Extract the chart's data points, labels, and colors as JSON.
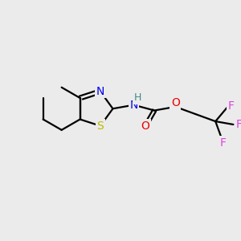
{
  "background_color": "#ebebeb",
  "bond_color": "#000000",
  "atom_colors": {
    "N": "#0000ee",
    "S": "#bbbb00",
    "O": "#ee0000",
    "F": "#dd44dd",
    "H": "#448888",
    "C": "#000000"
  },
  "figsize": [
    3.0,
    3.0
  ],
  "dpi": 100,
  "bond_lw": 1.6
}
